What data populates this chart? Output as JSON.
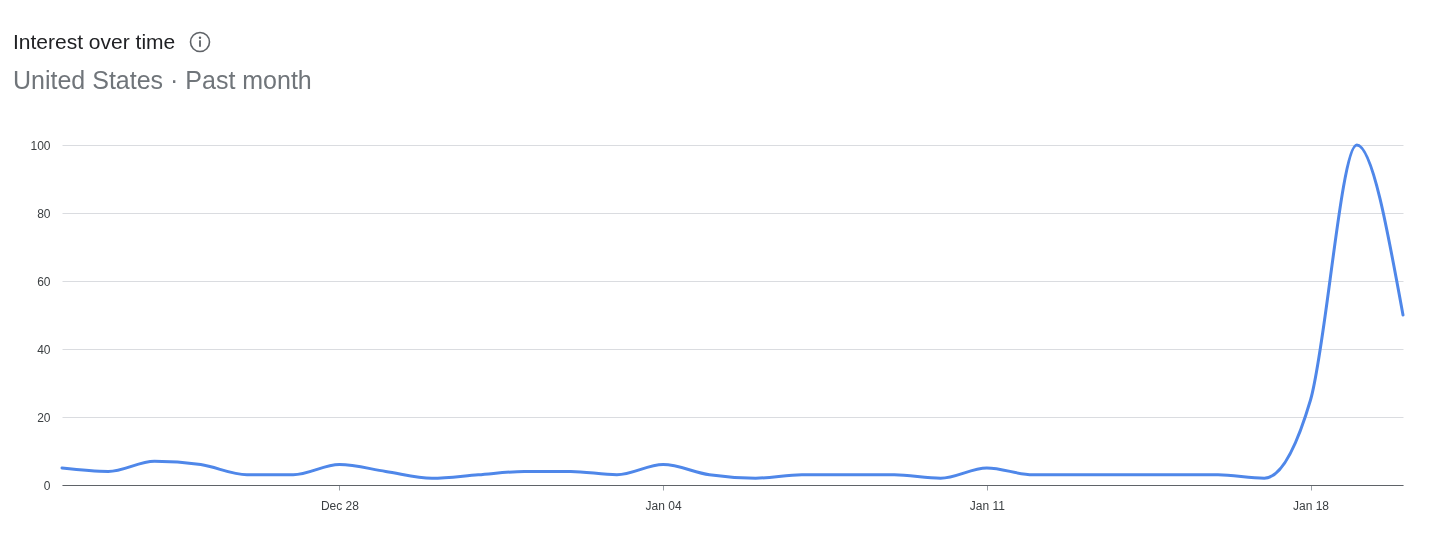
{
  "chart_data": {
    "type": "line",
    "title": "Interest over time",
    "subtitle": "United States · Past month",
    "categories": [
      null,
      null,
      null,
      null,
      null,
      null,
      "Dec 28",
      null,
      null,
      null,
      null,
      null,
      null,
      "Jan 04",
      null,
      null,
      null,
      null,
      null,
      null,
      "Jan 11",
      null,
      null,
      null,
      null,
      null,
      null,
      "Jan 18",
      null,
      null
    ],
    "series": [
      {
        "color": "#4f87e9",
        "values": [
          5,
          4,
          7,
          6,
          3,
          3,
          6,
          4,
          2,
          3,
          4,
          4,
          3,
          6,
          3,
          2,
          3,
          3,
          3,
          2,
          5,
          3,
          3,
          3,
          3,
          3,
          2,
          25,
          100,
          50
        ]
      }
    ],
    "ylim": [
      0,
      100
    ],
    "yticks": [
      0,
      20,
      40,
      60,
      80,
      100
    ],
    "grid": "y",
    "legend": false,
    "line_style": "solid",
    "marker": "none"
  }
}
